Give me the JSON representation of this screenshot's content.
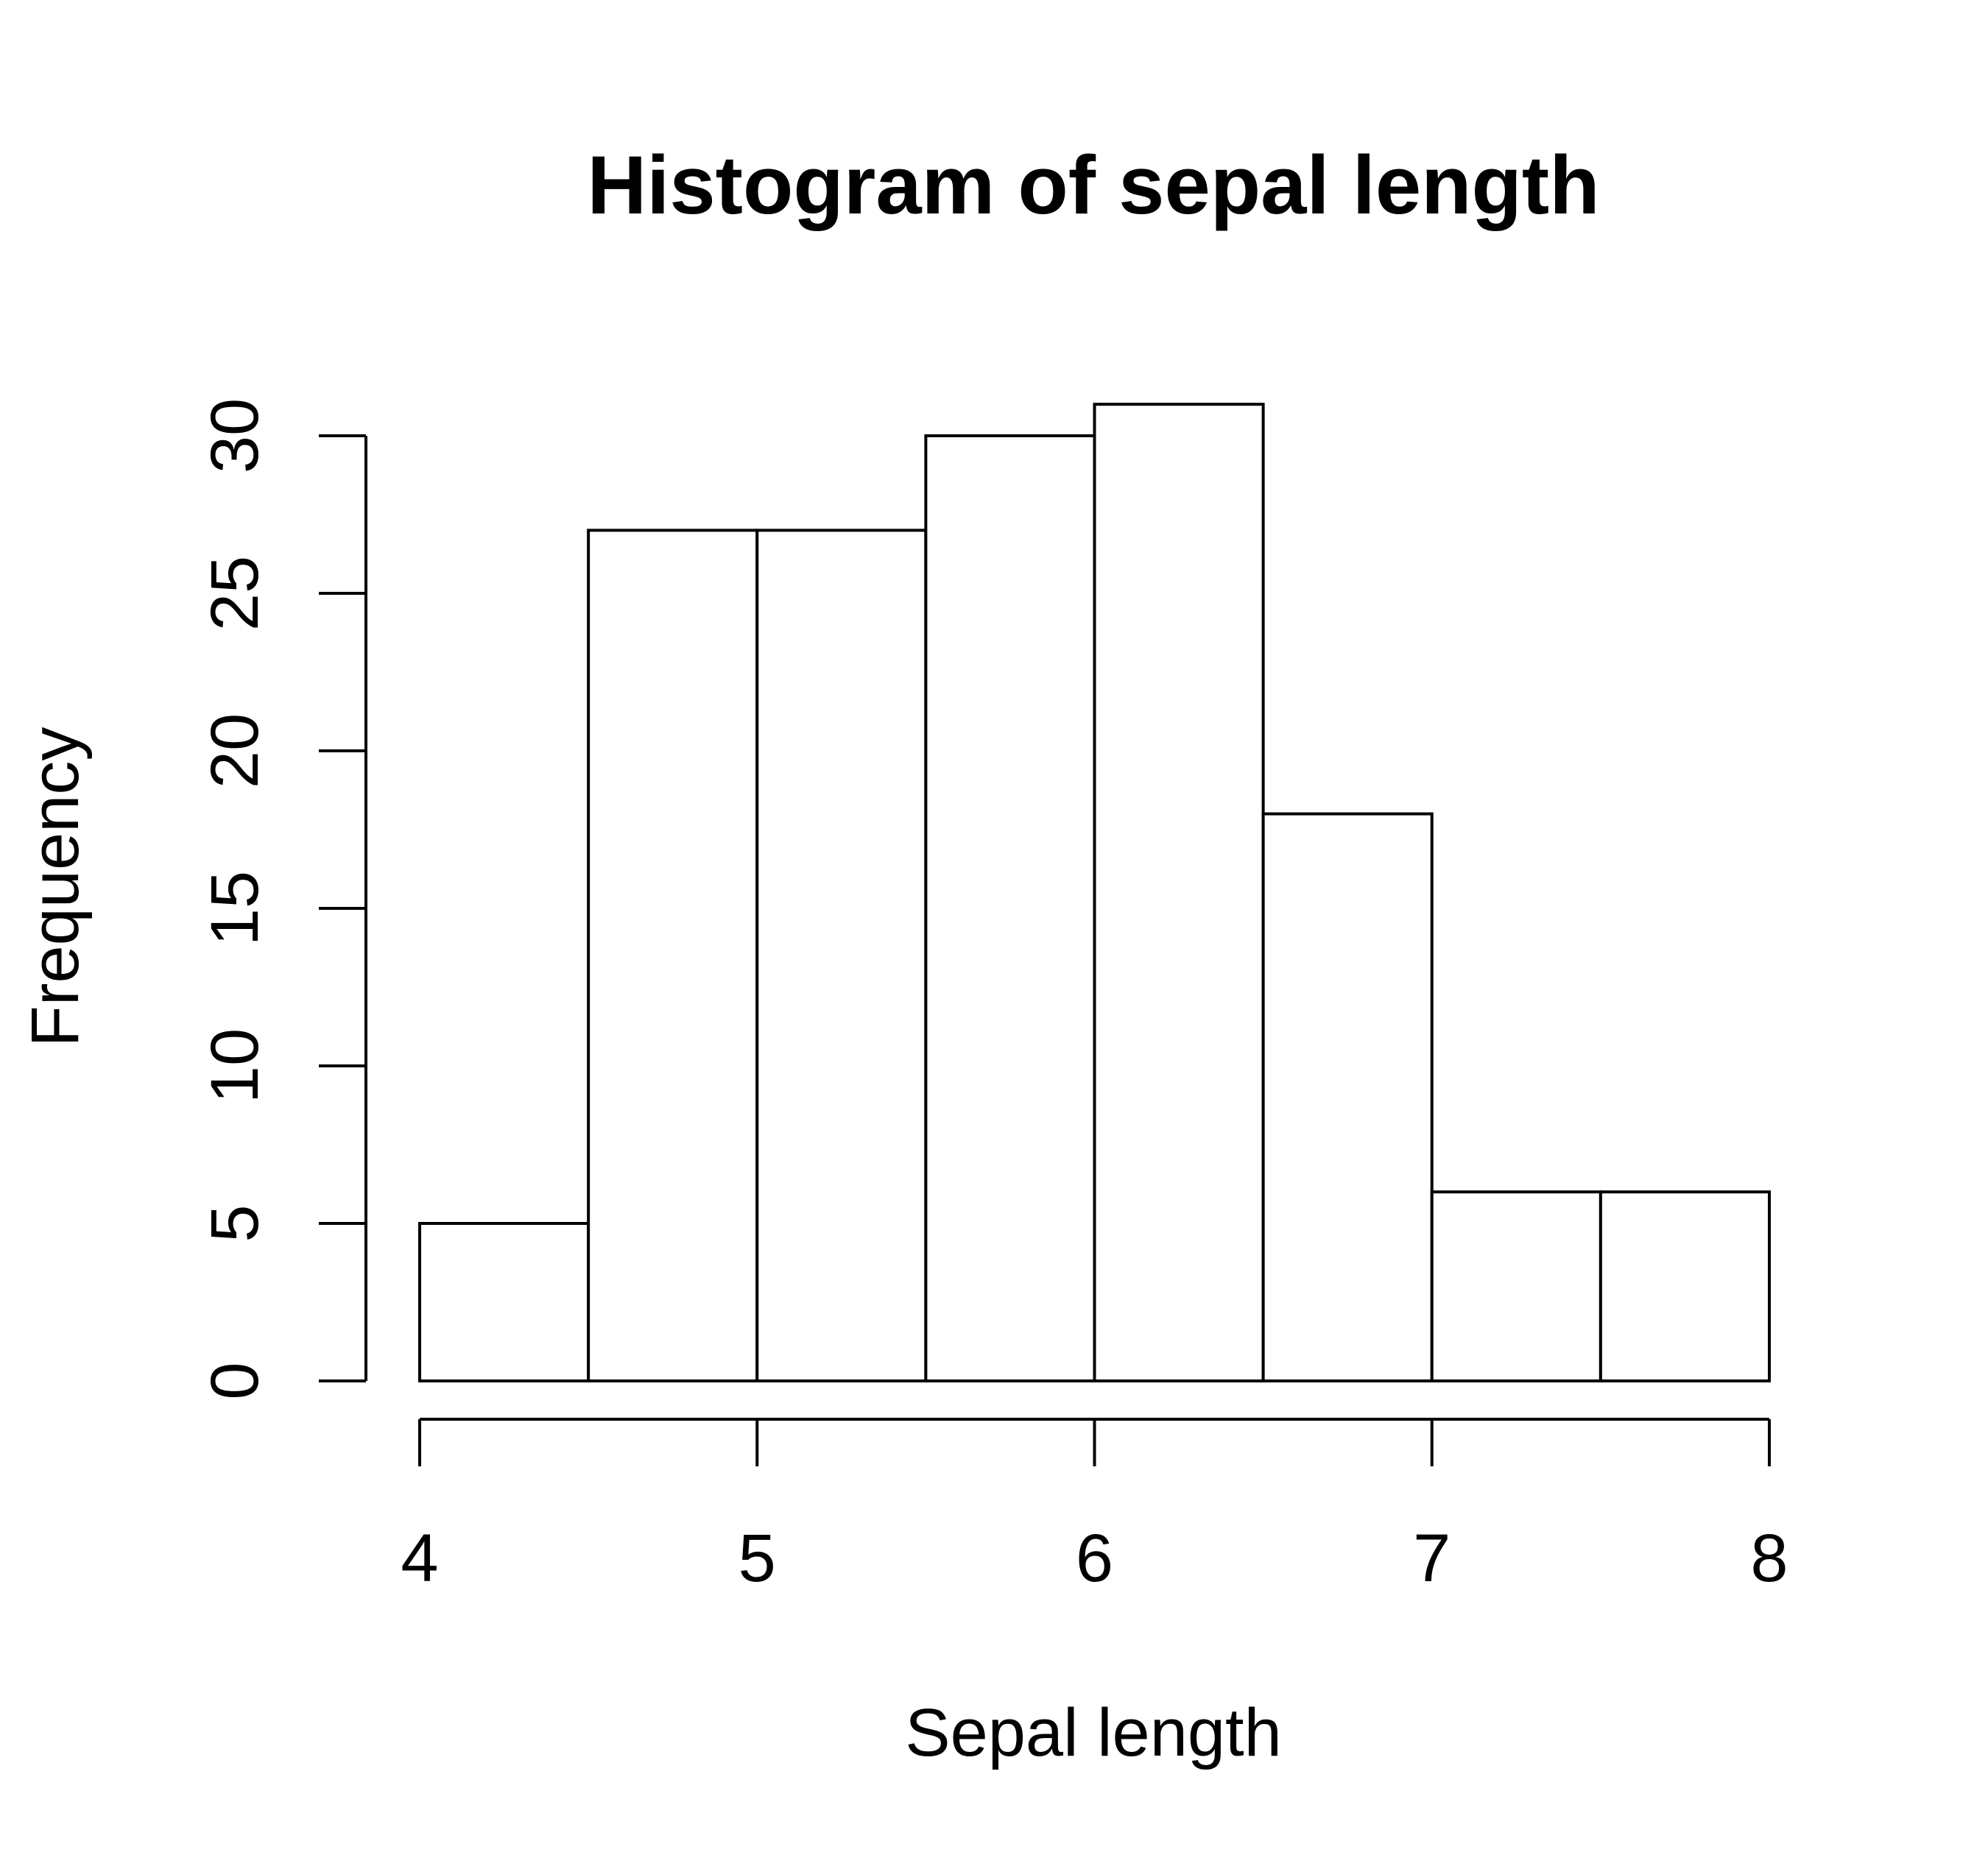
{
  "chart_data": {
    "type": "bar",
    "title": "Histogram of sepal length",
    "xlabel": "Sepal length",
    "ylabel": "Frequency",
    "bin_edges": [
      4.0,
      4.5,
      5.0,
      5.5,
      6.0,
      6.5,
      7.0,
      7.5,
      8.0
    ],
    "values": [
      5,
      27,
      27,
      30,
      31,
      18,
      6,
      6
    ],
    "xlim": [
      4,
      8
    ],
    "ylim": [
      0,
      30
    ],
    "x_ticks": [
      4,
      5,
      6,
      7,
      8
    ],
    "y_ticks": [
      0,
      5,
      10,
      15,
      20,
      25,
      30
    ],
    "grid": false,
    "bar_fill": "#ffffff",
    "bar_stroke": "#000000"
  }
}
